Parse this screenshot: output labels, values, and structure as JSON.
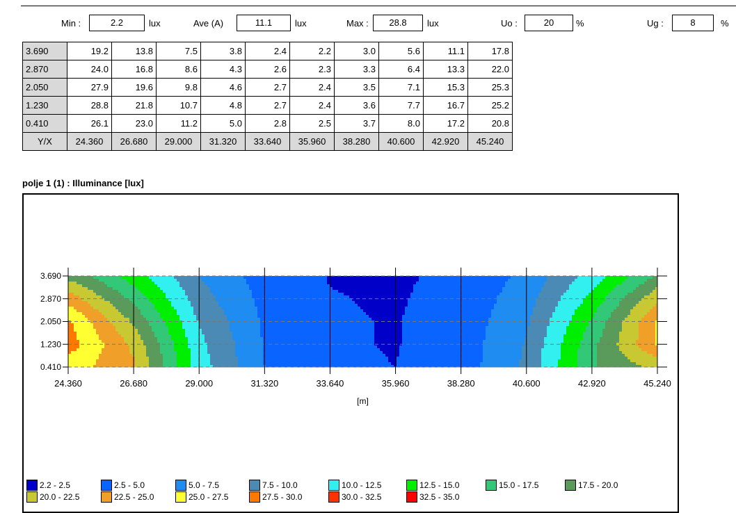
{
  "stats": {
    "min_label": "Min :",
    "min_value": "2.2",
    "min_unit": "lux",
    "ave_label": "Ave (A)",
    "ave_value": "11.1",
    "ave_unit": "lux",
    "max_label": "Max :",
    "max_value": "28.8",
    "max_unit": "lux",
    "uo_label": "Uo :",
    "uo_value": "20",
    "uo_unit": "%",
    "ug_label": "Ug :",
    "ug_value": "8",
    "ug_unit": "%"
  },
  "table": {
    "corner_label": "Y/X",
    "x_values": [
      "24.360",
      "26.680",
      "29.000",
      "31.320",
      "33.640",
      "35.960",
      "38.280",
      "40.600",
      "42.920",
      "45.240"
    ],
    "rows": [
      {
        "y": "3.690",
        "values": [
          "19.2",
          "13.8",
          "7.5",
          "3.8",
          "2.4",
          "2.2",
          "3.0",
          "5.6",
          "11.1",
          "17.8"
        ]
      },
      {
        "y": "2.870",
        "values": [
          "24.0",
          "16.8",
          "8.6",
          "4.3",
          "2.6",
          "2.3",
          "3.3",
          "6.4",
          "13.3",
          "22.0"
        ]
      },
      {
        "y": "2.050",
        "values": [
          "27.9",
          "19.6",
          "9.8",
          "4.6",
          "2.7",
          "2.4",
          "3.5",
          "7.1",
          "15.3",
          "25.3"
        ]
      },
      {
        "y": "1.230",
        "values": [
          "28.8",
          "21.8",
          "10.7",
          "4.8",
          "2.7",
          "2.4",
          "3.6",
          "7.7",
          "16.7",
          "25.2"
        ]
      },
      {
        "y": "0.410",
        "values": [
          "26.1",
          "23.0",
          "11.2",
          "5.0",
          "2.8",
          "2.5",
          "3.7",
          "8.0",
          "17.2",
          "20.8"
        ]
      }
    ]
  },
  "plot_title": "polje 1 (1) : Illuminance [lux]",
  "chart_data": {
    "type": "heatmap",
    "title": "polje 1 (1) : Illuminance [lux]",
    "xlabel": "[m]",
    "ylabel": "",
    "x": [
      24.36,
      26.68,
      29.0,
      31.32,
      33.64,
      35.96,
      38.28,
      40.6,
      42.92,
      45.24
    ],
    "y": [
      3.69,
      2.87,
      2.05,
      1.23,
      0.41
    ],
    "z": [
      [
        19.2,
        13.8,
        7.5,
        3.8,
        2.4,
        2.2,
        3.0,
        5.6,
        11.1,
        17.8
      ],
      [
        24.0,
        16.8,
        8.6,
        4.3,
        2.6,
        2.3,
        3.3,
        6.4,
        13.3,
        22.0
      ],
      [
        27.9,
        19.6,
        9.8,
        4.6,
        2.7,
        2.4,
        3.5,
        7.1,
        15.3,
        25.3
      ],
      [
        28.8,
        21.8,
        10.7,
        4.8,
        2.7,
        2.4,
        3.6,
        7.7,
        16.7,
        25.2
      ],
      [
        26.1,
        23.0,
        11.2,
        5.0,
        2.8,
        2.5,
        3.7,
        8.0,
        17.2,
        20.8
      ]
    ],
    "x_ticks": [
      "24.360",
      "26.680",
      "29.000",
      "31.320",
      "33.640",
      "35.960",
      "38.280",
      "40.600",
      "42.920",
      "45.240"
    ],
    "y_ticks": [
      "3.690",
      "2.870",
      "2.050",
      "1.230",
      "0.410"
    ],
    "grid": true,
    "legend_placement": "bottom",
    "legend": [
      {
        "label": "2.2 - 2.5",
        "min": 2.2,
        "max": 2.5,
        "color": "#0000c8"
      },
      {
        "label": "2.5 - 5.0",
        "min": 2.5,
        "max": 5.0,
        "color": "#0a64ff"
      },
      {
        "label": "5.0 - 7.5",
        "min": 5.0,
        "max": 7.5,
        "color": "#1e8cf0"
      },
      {
        "label": "7.5 - 10.0",
        "min": 7.5,
        "max": 10.0,
        "color": "#4a8ab4"
      },
      {
        "label": "10.0 - 12.5",
        "min": 10.0,
        "max": 12.5,
        "color": "#32f0f0"
      },
      {
        "label": "12.5 - 15.0",
        "min": 12.5,
        "max": 15.0,
        "color": "#00ee00"
      },
      {
        "label": "15.0 - 17.5",
        "min": 15.0,
        "max": 17.5,
        "color": "#32c878"
      },
      {
        "label": "17.5 - 20.0",
        "min": 17.5,
        "max": 20.0,
        "color": "#5a9a5a"
      },
      {
        "label": "20.0 - 22.5",
        "min": 20.0,
        "max": 22.5,
        "color": "#c8c832"
      },
      {
        "label": "22.5 - 25.0",
        "min": 22.5,
        "max": 25.0,
        "color": "#f0a028"
      },
      {
        "label": "25.0 - 27.5",
        "min": 25.0,
        "max": 27.5,
        "color": "#ffff32"
      },
      {
        "label": "27.5 - 30.0",
        "min": 27.5,
        "max": 30.0,
        "color": "#ff7800"
      },
      {
        "label": "30.0 - 32.5",
        "min": 30.0,
        "max": 32.5,
        "color": "#ff3200"
      },
      {
        "label": "32.5 - 35.0",
        "min": 32.5,
        "max": 35.0,
        "color": "#ff0000"
      }
    ]
  }
}
